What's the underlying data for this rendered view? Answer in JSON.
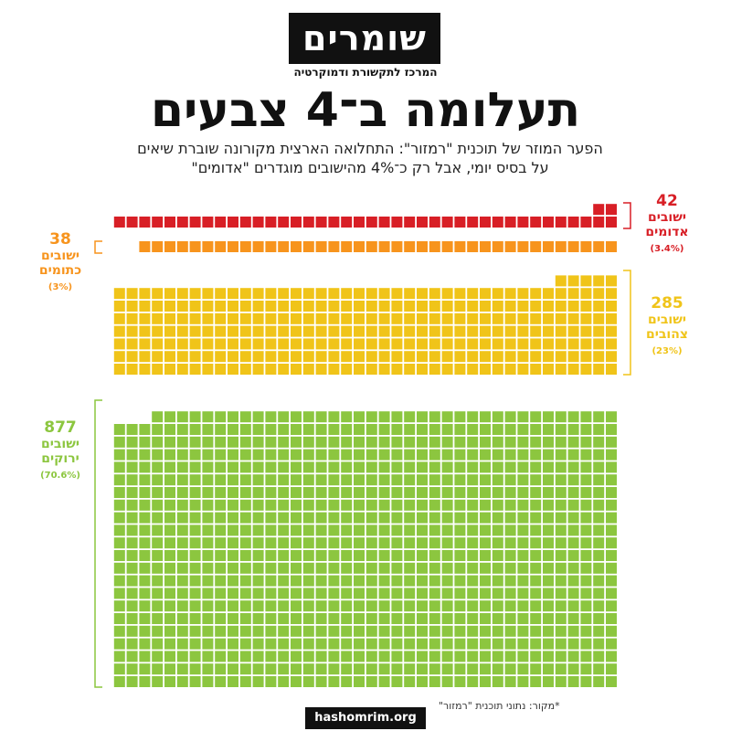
{
  "brand": {
    "logo": "שומרים",
    "tagline": "המרכז לתקשורת ודמוקרטיה",
    "url": "hashomrim.org"
  },
  "title": "תעלומה ב־4 צבעים",
  "subtitle_line1": "הפער המוזר של תוכנית \"רמזור\": התחלואה הארצית מקורונה שוברת שיאים",
  "subtitle_line2": "על בסיס יומי, אבל רק כ־4% מהישובים מוגדרים \"אדומים\"",
  "source": "*מקור: נתוני תוכנית \"רמזור\"",
  "chart_data": {
    "type": "waffle",
    "title": "תעלומה ב־4 צבעים",
    "unit": "ישובים",
    "series": [
      {
        "name": "ישובים אדומים",
        "label_line1": "ישובים",
        "label_line2": "אדומים",
        "count": 42,
        "count_label": "42",
        "percent": 3.4,
        "percent_label": "(3.4%)",
        "color": "#d81f26"
      },
      {
        "name": "ישובים כתומים",
        "label_line1": "ישובים",
        "label_line2": "כתומים",
        "count": 38,
        "count_label": "38",
        "percent": 3,
        "percent_label": "(3%)",
        "color": "#f7941d"
      },
      {
        "name": "ישובים צהובים",
        "label_line1": "ישובים",
        "label_line2": "צהובים",
        "count": 285,
        "count_label": "285",
        "percent": 23,
        "percent_label": "(23%)",
        "color": "#f0c419"
      },
      {
        "name": "ישובים ירוקים",
        "label_line1": "ישובים",
        "label_line2": "ירוקים",
        "count": 877,
        "count_label": "877",
        "percent": 70.6,
        "percent_label": "(70.6%)",
        "color": "#8cc63f"
      }
    ]
  }
}
